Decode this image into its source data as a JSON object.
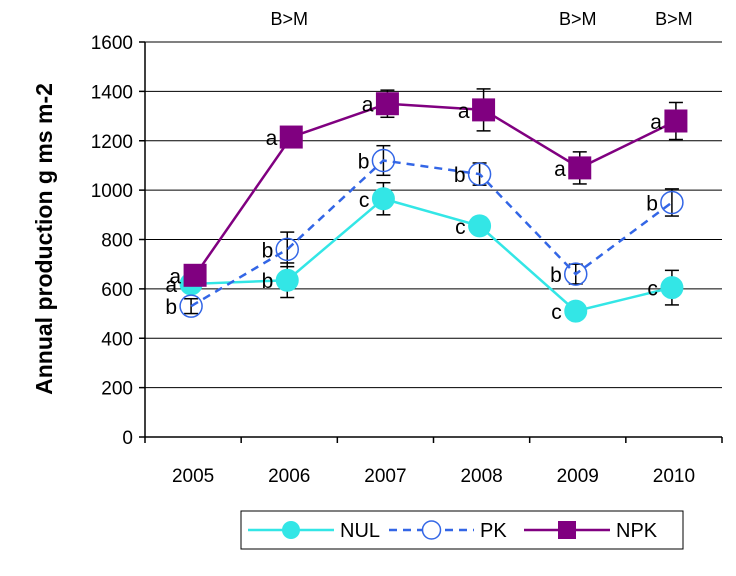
{
  "chart_data": {
    "type": "line",
    "title": "",
    "xlabel": "",
    "ylabel": "Annual production g ms m-2",
    "ylim": [
      0,
      1600
    ],
    "yticks": [
      0,
      200,
      400,
      600,
      800,
      1000,
      1200,
      1400,
      1600
    ],
    "categories": [
      "2005",
      "2006",
      "2007",
      "2008",
      "2009",
      "2010"
    ],
    "grid": "horizontal",
    "legend": "bottom",
    "series": [
      {
        "name": "NUL",
        "color": "#33E6E6",
        "dash": "solid",
        "marker": "filled-circle",
        "values": [
          620,
          635,
          965,
          855,
          510,
          605
        ],
        "err": [
          0,
          70,
          65,
          0,
          0,
          70
        ],
        "letters": [
          "a",
          "b",
          "c",
          "c",
          "c",
          "c"
        ]
      },
      {
        "name": "PK",
        "color": "#3366E6",
        "dash": "dashed",
        "marker": "open-circle",
        "values": [
          530,
          760,
          1120,
          1065,
          660,
          950
        ],
        "err": [
          30,
          70,
          60,
          45,
          40,
          55
        ],
        "letters": [
          "b",
          "b",
          "b",
          "b",
          "b",
          "b"
        ]
      },
      {
        "name": "NPK",
        "color": "#800080",
        "dash": "solid",
        "marker": "filled-square",
        "values": [
          655,
          1215,
          1350,
          1325,
          1090,
          1280
        ],
        "err": [
          0,
          0,
          55,
          85,
          65,
          75
        ],
        "letters": [
          "a",
          "a",
          "a",
          "a",
          "a",
          "a"
        ]
      }
    ],
    "top_annotations": [
      {
        "category": "2006",
        "text": "B>M"
      },
      {
        "category": "2009",
        "text": "B>M"
      },
      {
        "category": "2010",
        "text": "B>M"
      }
    ]
  }
}
